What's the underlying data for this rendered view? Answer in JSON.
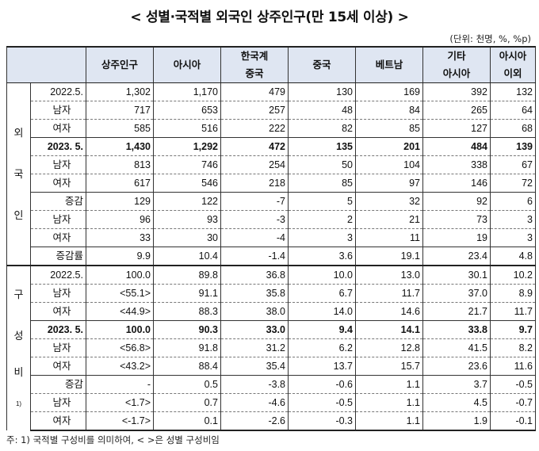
{
  "title": "< 성별·국적별 외국인 상주인구(만 15세 이상) >",
  "unit": "(단위: 천명, %, %p)",
  "headers": [
    [
      "상주인구"
    ],
    [
      "아시아"
    ],
    [
      "한국계",
      "중국"
    ],
    [
      "중국"
    ],
    [
      "베트남"
    ],
    [
      "기타",
      "아시아"
    ],
    [
      "아시아",
      "이외"
    ]
  ],
  "groups": {
    "foreigner": [
      "외",
      "국",
      "인"
    ],
    "ratio": [
      "구",
      "성",
      "비"
    ],
    "ratio_sup": "1)"
  },
  "foreigner_rows": [
    {
      "label": "2022.5.",
      "values": [
        "1,302",
        "1,170",
        "479",
        "130",
        "169",
        "392",
        "132"
      ]
    },
    {
      "label": "남자",
      "values": [
        "717",
        "653",
        "257",
        "48",
        "84",
        "265",
        "64"
      ]
    },
    {
      "label": "여자",
      "values": [
        "585",
        "516",
        "222",
        "82",
        "85",
        "127",
        "68"
      ]
    },
    {
      "label": "2023. 5.",
      "values": [
        "1,430",
        "1,292",
        "472",
        "135",
        "201",
        "484",
        "139"
      ]
    },
    {
      "label": "남자",
      "values": [
        "813",
        "746",
        "254",
        "50",
        "104",
        "338",
        "67"
      ]
    },
    {
      "label": "여자",
      "values": [
        "617",
        "546",
        "218",
        "85",
        "97",
        "146",
        "72"
      ]
    },
    {
      "label": "증감",
      "values": [
        "129",
        "122",
        "-7",
        "5",
        "32",
        "92",
        "6"
      ]
    },
    {
      "label": "남자",
      "values": [
        "96",
        "93",
        "-3",
        "2",
        "21",
        "73",
        "3"
      ]
    },
    {
      "label": "여자",
      "values": [
        "33",
        "30",
        "-4",
        "3",
        "11",
        "19",
        "3"
      ]
    },
    {
      "label": "증감률",
      "values": [
        "9.9",
        "10.4",
        "-1.4",
        "3.6",
        "19.1",
        "23.4",
        "4.8"
      ]
    }
  ],
  "ratio_rows": [
    {
      "label": "2022.5.",
      "values": [
        "100.0",
        "89.8",
        "36.8",
        "10.0",
        "13.0",
        "30.1",
        "10.2"
      ]
    },
    {
      "label": "남자",
      "values": [
        "<55.1>",
        "91.1",
        "35.8",
        "6.7",
        "11.7",
        "37.0",
        "8.9"
      ]
    },
    {
      "label": "여자",
      "values": [
        "<44.9>",
        "88.3",
        "38.0",
        "14.0",
        "14.6",
        "21.7",
        "11.7"
      ]
    },
    {
      "label": "2023. 5.",
      "values": [
        "100.0",
        "90.3",
        "33.0",
        "9.4",
        "14.1",
        "33.8",
        "9.7"
      ]
    },
    {
      "label": "남자",
      "values": [
        "<56.8>",
        "91.8",
        "31.2",
        "6.2",
        "12.8",
        "41.5",
        "8.2"
      ]
    },
    {
      "label": "여자",
      "values": [
        "<43.2>",
        "88.4",
        "35.4",
        "13.7",
        "15.7",
        "23.6",
        "11.6"
      ]
    },
    {
      "label": "증감",
      "values": [
        "-",
        "0.5",
        "-3.8",
        "-0.6",
        "1.1",
        "3.7",
        "-0.5"
      ]
    },
    {
      "label": "남자",
      "values": [
        "<1.7>",
        "0.7",
        "-4.6",
        "-0.5",
        "1.1",
        "4.5",
        "-0.7"
      ]
    },
    {
      "label": "여자",
      "values": [
        "<-1.7>",
        "0.1",
        "-2.6",
        "-0.3",
        "1.1",
        "1.9",
        "-0.1"
      ]
    }
  ],
  "footnote": "주: 1) 국적별 구성비를 의미하여, < >은 성별 구성비임"
}
